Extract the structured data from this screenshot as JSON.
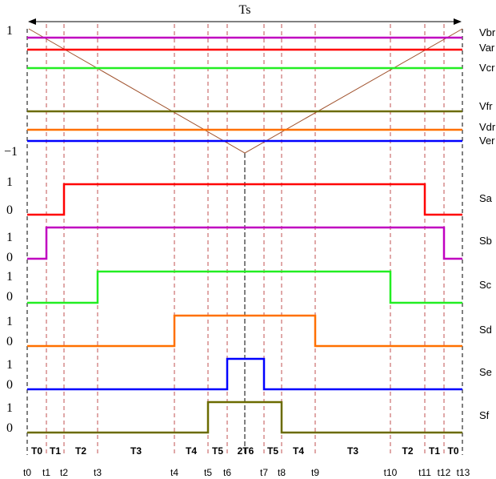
{
  "period_label": "Ts",
  "carrier_labels": {
    "top": "1",
    "bottom": "−1"
  },
  "reference_labels": [
    "Vbr",
    "Var",
    "Vcr",
    "Vfr",
    "Vdr",
    "Ver"
  ],
  "colors": {
    "a": "#ff0000",
    "b": "#c000c0",
    "c": "#22ee22",
    "d": "#ff7000",
    "e": "#0000ff",
    "f": "#6b6b00",
    "carrier": "#a0522d",
    "guide": "#c05050",
    "axis": "#000000"
  },
  "switches": [
    {
      "name": "Sa",
      "high": "1",
      "low": "0",
      "color_key": "a"
    },
    {
      "name": "Sb",
      "high": "1",
      "low": "0",
      "color_key": "b"
    },
    {
      "name": "Sc",
      "high": "1",
      "low": "0",
      "color_key": "c"
    },
    {
      "name": "Sd",
      "high": "1",
      "low": "0",
      "color_key": "d"
    },
    {
      "name": "Se",
      "high": "1",
      "low": "0",
      "color_key": "e"
    },
    {
      "name": "Sf",
      "high": "1",
      "low": "0",
      "color_key": "f"
    }
  ],
  "interval_labels": [
    "T0",
    "T1",
    "T2",
    "T3",
    "T4",
    "T5",
    "2T6",
    "T5",
    "T4",
    "T3",
    "T2",
    "T1",
    "T0"
  ],
  "time_labels": [
    "t0",
    "t1",
    "t2",
    "t3",
    "t4",
    "t5",
    "t6",
    "t7",
    "t8",
    "t9",
    "t10",
    "t11",
    "t12",
    "t13"
  ]
}
